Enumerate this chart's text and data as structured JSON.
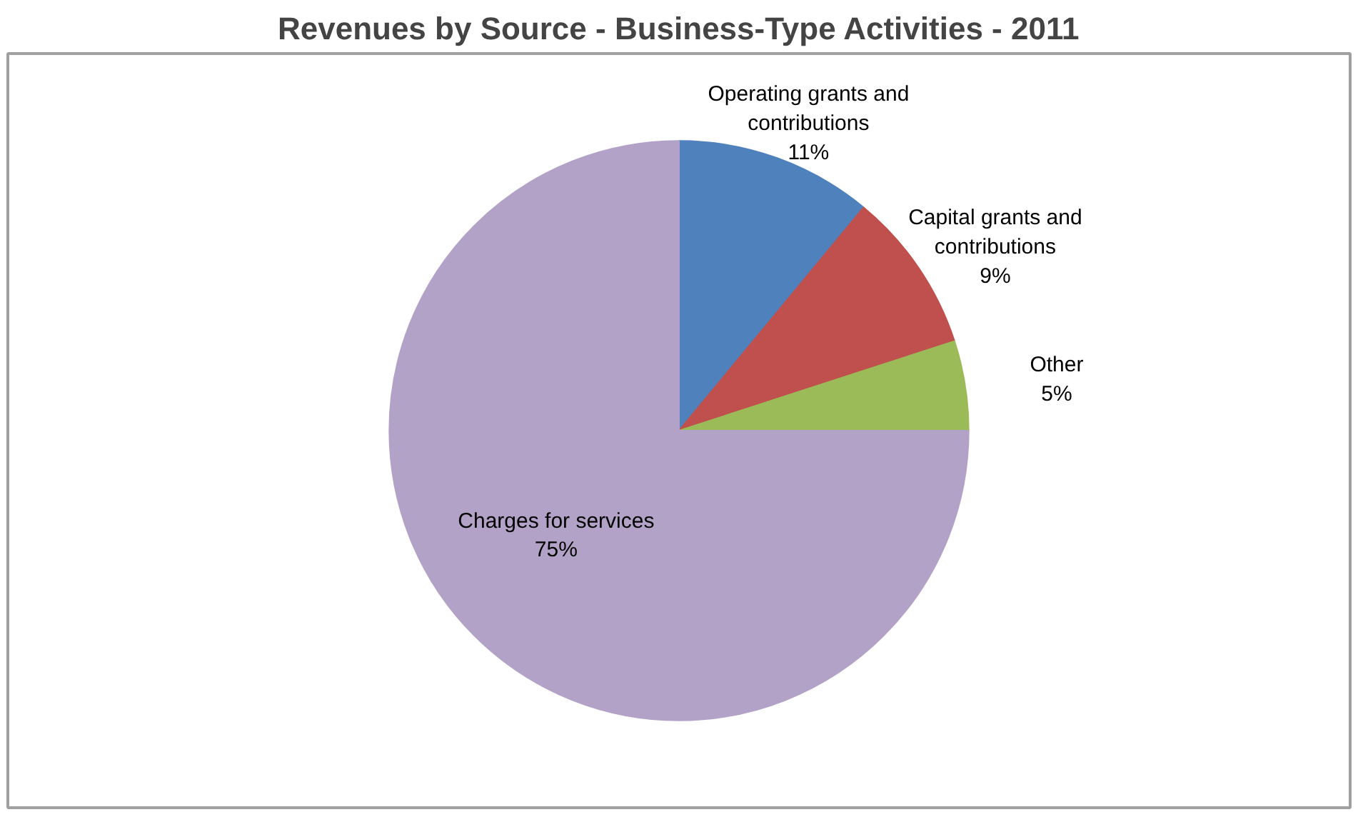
{
  "chart_data": {
    "type": "pie",
    "title": "Revenues by Source - Business-Type Activities - 2011",
    "categories": [
      "Operating grants and contributions",
      "Capital grants and contributions",
      "Other",
      "Charges for services"
    ],
    "values": [
      11,
      9,
      5,
      75
    ],
    "colors": [
      "#4f81bd",
      "#c0504d",
      "#9bbb59",
      "#b3a2c7"
    ],
    "value_labels": [
      "11%",
      "9%",
      "5%",
      "75%"
    ]
  }
}
